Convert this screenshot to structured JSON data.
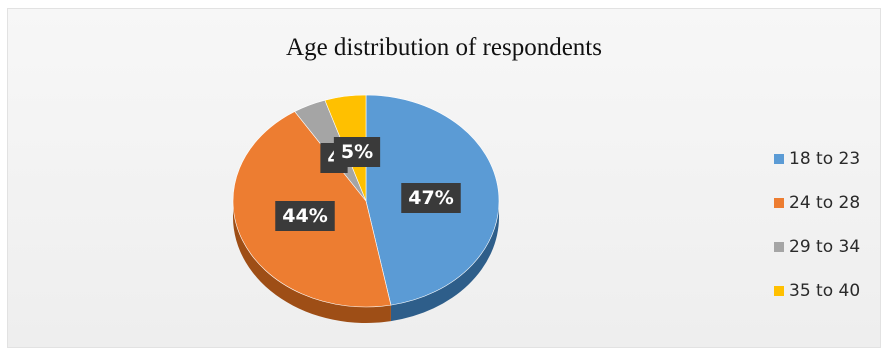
{
  "chart_data": {
    "type": "pie",
    "title": "Age distribution of respondents",
    "legend_position": "right",
    "slices": [
      {
        "label": "18 to 23",
        "value": 47,
        "display": "47%",
        "color": "#5B9BD5",
        "side_color": "#2E5E8A"
      },
      {
        "label": "24 to 28",
        "value": 44,
        "display": "44%",
        "color": "#ED7D31",
        "side_color": "#9E4E16"
      },
      {
        "label": "29 to 34",
        "value": 4,
        "display": "4",
        "color": "#A5A5A5",
        "side_color": "#6F6F6F"
      },
      {
        "label": "35 to 40",
        "value": 5,
        "display": "5%",
        "color": "#FFC000",
        "side_color": "#A88000"
      }
    ]
  }
}
